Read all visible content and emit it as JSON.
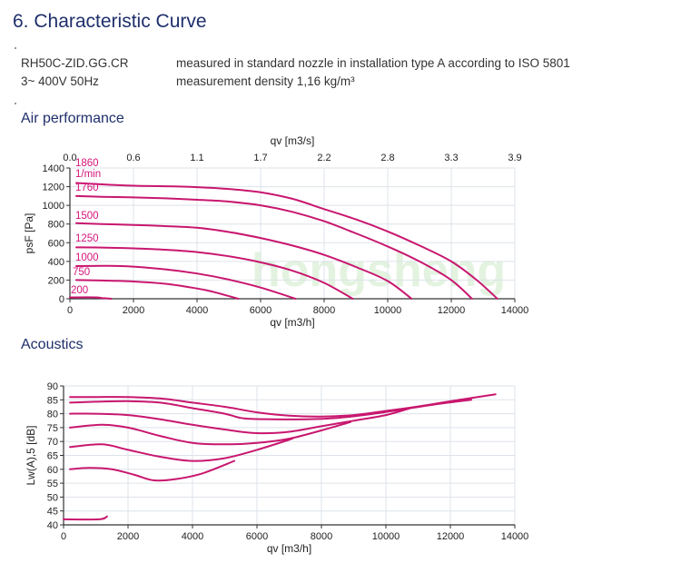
{
  "header": {
    "title": "6.  Characteristic Curve",
    "model": "RH50C-ZID.GG.CR",
    "supply": "3~ 400V 50Hz",
    "measurement": "measured in standard nozzle in installation type A according to ISO 5801",
    "density": "measurement density 1,16 kg/m³"
  },
  "sections": {
    "air": "Air performance",
    "acoustics": "Acoustics"
  },
  "watermark": "hongsheng",
  "colors": {
    "curve": "#c8176f",
    "grid": "#dde3ea",
    "title": "#1f2f6b",
    "label": "#d4157c"
  },
  "chart_data": [
    {
      "type": "line",
      "title": "Air performance",
      "xlabel": "qv [m3/h]",
      "x2label": "qv [m3/s]",
      "ylabel": "psF [Pa]",
      "xlim": [
        0,
        14000
      ],
      "ylim": [
        0,
        1400
      ],
      "xticks": [
        "0",
        "2000",
        "4000",
        "6000",
        "8000",
        "10000",
        "12000",
        "14000"
      ],
      "x2ticks": [
        "0.0",
        "0.6",
        "1.1",
        "1.7",
        "2.2",
        "2.8",
        "3.3",
        "3.9"
      ],
      "yticks": [
        "0",
        "200",
        "400",
        "600",
        "800",
        "1000",
        "1200",
        "1400"
      ],
      "grid": true,
      "speed_unit": "1/min",
      "series": [
        {
          "name": "1860",
          "points": [
            [
              200,
              1240
            ],
            [
              1000,
              1225
            ],
            [
              2000,
              1210
            ],
            [
              3000,
              1205
            ],
            [
              4000,
              1195
            ],
            [
              5000,
              1175
            ],
            [
              6000,
              1140
            ],
            [
              7000,
              1070
            ],
            [
              8000,
              960
            ],
            [
              9000,
              850
            ],
            [
              10000,
              720
            ],
            [
              11000,
              570
            ],
            [
              12000,
              400
            ],
            [
              12800,
              200
            ],
            [
              13450,
              0
            ]
          ]
        },
        {
          "name": "1760",
          "points": [
            [
              200,
              1100
            ],
            [
              1000,
              1092
            ],
            [
              2000,
              1085
            ],
            [
              3000,
              1075
            ],
            [
              4000,
              1060
            ],
            [
              5000,
              1040
            ],
            [
              6000,
              1000
            ],
            [
              7000,
              930
            ],
            [
              8000,
              830
            ],
            [
              9000,
              700
            ],
            [
              10000,
              560
            ],
            [
              11000,
              400
            ],
            [
              12000,
              200
            ],
            [
              12650,
              0
            ]
          ]
        },
        {
          "name": "1500",
          "points": [
            [
              200,
              810
            ],
            [
              1000,
              800
            ],
            [
              2000,
              790
            ],
            [
              3000,
              778
            ],
            [
              4000,
              760
            ],
            [
              5000,
              715
            ],
            [
              6000,
              650
            ],
            [
              7000,
              570
            ],
            [
              8000,
              470
            ],
            [
              9000,
              340
            ],
            [
              10000,
              190
            ],
            [
              10750,
              0
            ]
          ]
        },
        {
          "name": "1250",
          "points": [
            [
              200,
              550
            ],
            [
              1000,
              548
            ],
            [
              2000,
              540
            ],
            [
              3000,
              525
            ],
            [
              4000,
              500
            ],
            [
              5000,
              455
            ],
            [
              6000,
              390
            ],
            [
              7000,
              300
            ],
            [
              8000,
              170
            ],
            [
              8900,
              0
            ]
          ]
        },
        {
          "name": "1000",
          "points": [
            [
              200,
              350
            ],
            [
              1000,
              352
            ],
            [
              1800,
              348
            ],
            [
              3000,
              315
            ],
            [
              4000,
              270
            ],
            [
              5000,
              205
            ],
            [
              6000,
              120
            ],
            [
              7100,
              0
            ]
          ]
        },
        {
          "name": "750",
          "points": [
            [
              200,
              200
            ],
            [
              1000,
              195
            ],
            [
              2000,
              185
            ],
            [
              3000,
              160
            ],
            [
              4000,
              110
            ],
            [
              4500,
              75
            ],
            [
              5300,
              0
            ]
          ]
        },
        {
          "name": "200",
          "points": [
            [
              0,
              15
            ],
            [
              800,
              15
            ],
            [
              1000,
              8
            ],
            [
              1300,
              0
            ]
          ]
        }
      ]
    },
    {
      "type": "line",
      "title": "Acoustics",
      "xlabel": "qv [m3/h]",
      "ylabel": "Lw(A),5 [dB]",
      "xlim": [
        0,
        14000
      ],
      "ylim": [
        40,
        90
      ],
      "xticks": [
        "0",
        "2000",
        "4000",
        "6000",
        "8000",
        "10000",
        "12000",
        "14000"
      ],
      "yticks": [
        "40",
        "45",
        "50",
        "55",
        "60",
        "65",
        "70",
        "75",
        "80",
        "85",
        "90"
      ],
      "grid": true,
      "series": [
        {
          "name": "1860",
          "points": [
            [
              200,
              86
            ],
            [
              1000,
              86
            ],
            [
              2000,
              86
            ],
            [
              3000,
              85.5
            ],
            [
              4000,
              84
            ],
            [
              5000,
              82.5
            ],
            [
              6000,
              80.5
            ],
            [
              7000,
              79.3
            ],
            [
              8000,
              79
            ],
            [
              9000,
              79.5
            ],
            [
              10000,
              81
            ],
            [
              11000,
              82.6
            ],
            [
              12000,
              84.5
            ],
            [
              13400,
              87
            ]
          ]
        },
        {
          "name": "1760",
          "points": [
            [
              200,
              84
            ],
            [
              1000,
              84.3
            ],
            [
              2000,
              84.5
            ],
            [
              3000,
              84
            ],
            [
              4000,
              82
            ],
            [
              5000,
              80
            ],
            [
              5600,
              78.3
            ],
            [
              6500,
              78
            ],
            [
              7500,
              78
            ],
            [
              8500,
              78.5
            ],
            [
              9500,
              79.8
            ],
            [
              10500,
              81.5
            ],
            [
              11500,
              83.3
            ],
            [
              12650,
              85
            ]
          ]
        },
        {
          "name": "1500",
          "points": [
            [
              200,
              80
            ],
            [
              1000,
              80
            ],
            [
              2000,
              79.5
            ],
            [
              3000,
              78
            ],
            [
              4000,
              76
            ],
            [
              5000,
              74.3
            ],
            [
              6000,
              73
            ],
            [
              7000,
              73.5
            ],
            [
              8000,
              75.5
            ],
            [
              9000,
              77.5
            ],
            [
              10000,
              79.5
            ],
            [
              10750,
              82
            ]
          ]
        },
        {
          "name": "1250",
          "points": [
            [
              200,
              75
            ],
            [
              1200,
              76
            ],
            [
              2000,
              75
            ],
            [
              3000,
              72
            ],
            [
              4000,
              69.5
            ],
            [
              5000,
              69
            ],
            [
              6000,
              69.5
            ],
            [
              7000,
              71
            ],
            [
              8000,
              74
            ],
            [
              8900,
              77
            ]
          ]
        },
        {
          "name": "1000",
          "points": [
            [
              200,
              68
            ],
            [
              1200,
              69
            ],
            [
              2000,
              67
            ],
            [
              3000,
              64.5
            ],
            [
              4000,
              63
            ],
            [
              5000,
              64
            ],
            [
              6000,
              67
            ],
            [
              7100,
              71
            ]
          ]
        },
        {
          "name": "750",
          "points": [
            [
              200,
              60
            ],
            [
              800,
              60.5
            ],
            [
              1500,
              60
            ],
            [
              2200,
              58
            ],
            [
              2800,
              56
            ],
            [
              3500,
              56.5
            ],
            [
              4300,
              58.5
            ],
            [
              5300,
              63
            ]
          ]
        },
        {
          "name": "200",
          "points": [
            [
              0,
              42
            ],
            [
              1100,
              42
            ],
            [
              1350,
              43
            ]
          ]
        }
      ]
    }
  ]
}
